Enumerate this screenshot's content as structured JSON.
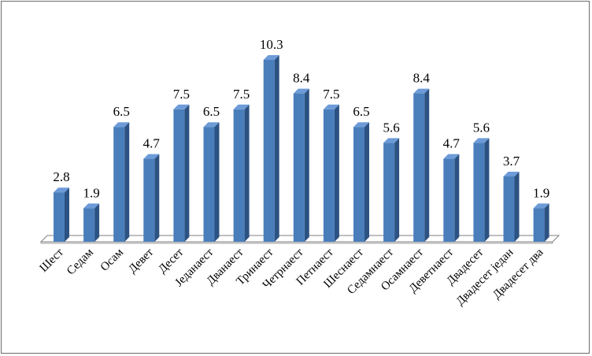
{
  "chart_data": {
    "type": "bar",
    "categories": [
      "Шест",
      "Седам",
      "Осам",
      "Девет",
      "Десет",
      "Једанаест",
      "Дванаест",
      "Тринаест",
      "Четрнаест",
      "Петнаест",
      "Шеснаест",
      "Седамнаест",
      "Осамнаест",
      "Деветнаест",
      "Двадесет",
      "Двадесет један",
      "Двадесет два"
    ],
    "values": [
      2.8,
      1.9,
      6.5,
      4.7,
      7.5,
      6.5,
      7.5,
      10.3,
      8.4,
      7.5,
      6.5,
      5.6,
      8.4,
      4.7,
      5.6,
      3.7,
      1.9
    ],
    "value_labels": [
      "2.8",
      "1.9",
      "6.5",
      "4.7",
      "7.5",
      "6.5",
      "7.5",
      "10.3",
      "8.4",
      "7.5",
      "6.5",
      "5.6",
      "8.4",
      "4.7",
      "5.6",
      "3.7",
      "1.9"
    ],
    "ylim": [
      0,
      10.3
    ],
    "grid": false,
    "legend": "none",
    "style": "3d-column",
    "colors": {
      "bar_front": "#4a7ebb",
      "bar_side": "#2c5282",
      "bar_top": "#6d9bd8",
      "floor": "#ffffff",
      "floor_edge": "#7f7f7f"
    }
  }
}
